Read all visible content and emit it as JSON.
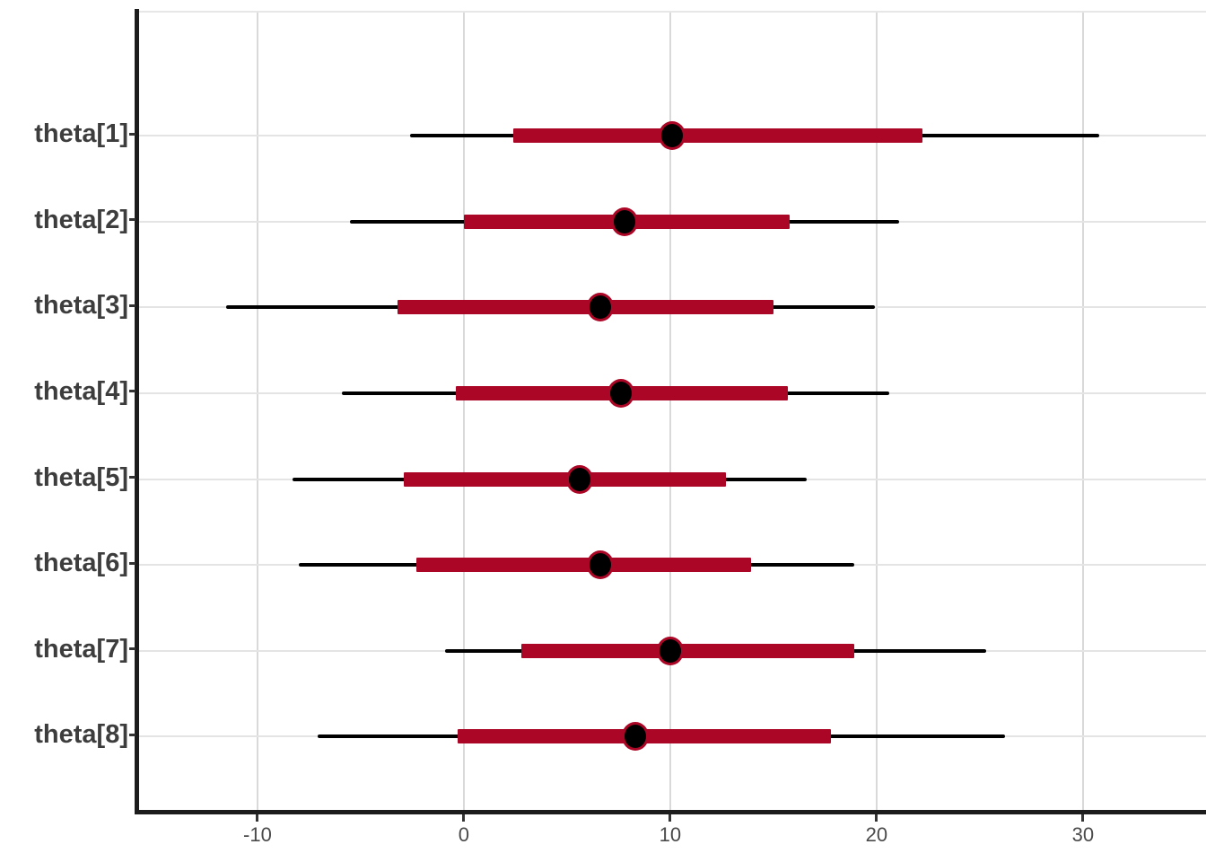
{
  "chart_data": {
    "type": "scatter",
    "subtype": "forest-interval-plot",
    "title": "",
    "xlabel": "",
    "ylabel": "",
    "grid": true,
    "legend": false,
    "xlim": [
      -15.78,
      35.96
    ],
    "x_ticks": [
      -10,
      0,
      10,
      20,
      30
    ],
    "x_tick_labels": [
      "-10",
      "0",
      "10",
      "20",
      "30"
    ],
    "categories": [
      "theta[1]",
      "theta[2]",
      "theta[3]",
      "theta[4]",
      "theta[5]",
      "theta[6]",
      "theta[7]",
      "theta[8]"
    ],
    "rows": [
      {
        "label": "theta[1]",
        "outer_low": -2.6,
        "inner_low": 2.4,
        "point": 10.1,
        "inner_high": 22.2,
        "outer_high": 30.8
      },
      {
        "label": "theta[2]",
        "outer_low": -5.5,
        "inner_low": 0.0,
        "point": 7.8,
        "inner_high": 15.8,
        "outer_high": 21.1
      },
      {
        "label": "theta[3]",
        "outer_low": -11.5,
        "inner_low": -3.2,
        "point": 6.6,
        "inner_high": 15.0,
        "outer_high": 19.9
      },
      {
        "label": "theta[4]",
        "outer_low": -5.9,
        "inner_low": -0.4,
        "point": 7.6,
        "inner_high": 15.7,
        "outer_high": 20.6
      },
      {
        "label": "theta[5]",
        "outer_low": -8.3,
        "inner_low": -2.9,
        "point": 5.6,
        "inner_high": 12.7,
        "outer_high": 16.6
      },
      {
        "label": "theta[6]",
        "outer_low": -8.0,
        "inner_low": -2.3,
        "point": 6.6,
        "inner_high": 13.9,
        "outer_high": 18.9
      },
      {
        "label": "theta[7]",
        "outer_low": -0.9,
        "inner_low": 2.8,
        "point": 10.0,
        "inner_high": 18.9,
        "outer_high": 25.3
      },
      {
        "label": "theta[8]",
        "outer_low": -7.1,
        "inner_low": -0.3,
        "point": 8.3,
        "inner_high": 17.8,
        "outer_high": 26.2
      }
    ],
    "colors": {
      "outer_interval_line": "#000000",
      "inner_interval_bar": "#AC0626",
      "point_fill": "#000000",
      "point_ring": "#AC0626",
      "axis_line": "#1c1c1c",
      "v_gridline": "#d9d9d9",
      "h_gridline": "#e4e4e4",
      "y_label_text": "#3d3d3d",
      "x_label_text": "#4a4a4a"
    }
  }
}
